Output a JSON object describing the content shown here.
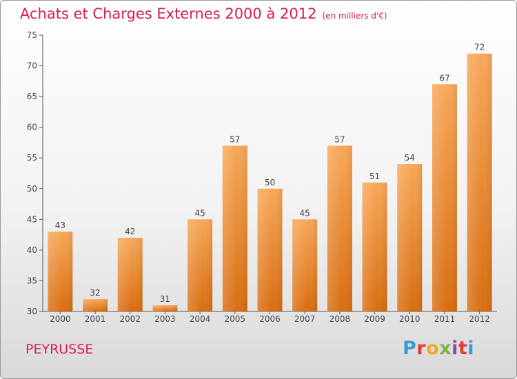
{
  "header": {
    "title": "Achats et Charges Externes 2000 à 2012",
    "subtitle": "(en milliers d'€)"
  },
  "footer": {
    "commune": "PEYRUSSE",
    "logo": "Proxiti",
    "logo_colors": [
      "#3a9ad9",
      "#e53935",
      "#f5a623",
      "#7cb342",
      "#8e44ad",
      "#e53935",
      "#3a9ad9"
    ]
  },
  "colors": {
    "bar_light": "#f7a758",
    "bar_dark": "#d86d10",
    "title": "#d81b5b",
    "axis": "#555555"
  },
  "chart_data": {
    "type": "bar",
    "categories": [
      "2000",
      "2001",
      "2002",
      "2003",
      "2004",
      "2005",
      "2006",
      "2007",
      "2008",
      "2009",
      "2010",
      "2011",
      "2012"
    ],
    "values": [
      43,
      32,
      42,
      31,
      45,
      57,
      50,
      45,
      57,
      51,
      54,
      67,
      72
    ],
    "ylim": [
      30,
      75
    ],
    "yticks": [
      30,
      35,
      40,
      45,
      50,
      55,
      60,
      65,
      70,
      75
    ],
    "grid": false
  }
}
